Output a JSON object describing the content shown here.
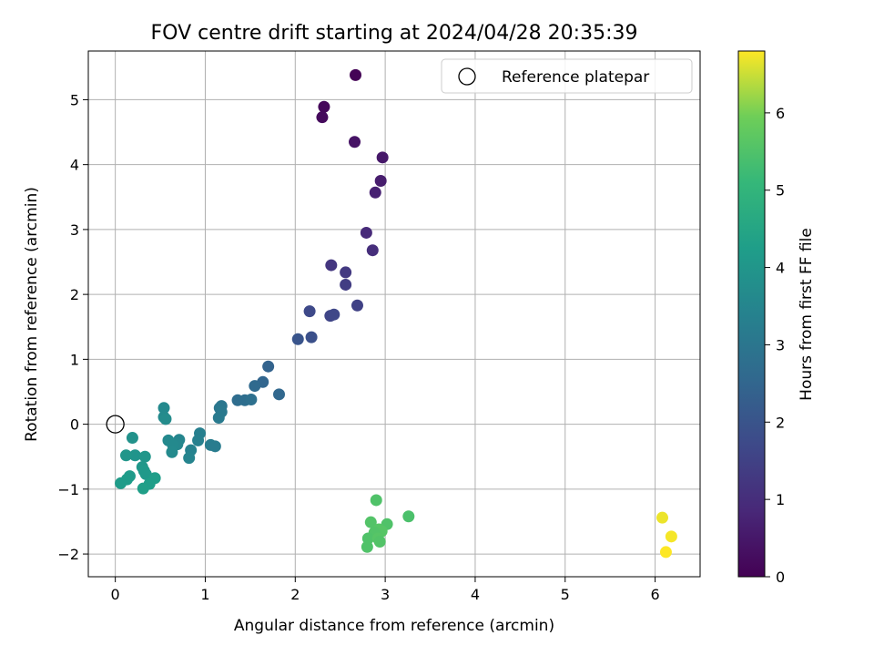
{
  "chart_data": {
    "type": "scatter",
    "title": "FOV centre drift starting at 2024/04/28 20:35:39",
    "xlabel": "Angular distance from reference (arcmin)",
    "ylabel": "Rotation from reference (arcmin)",
    "xlim": [
      -0.3,
      6.5
    ],
    "ylim": [
      -2.35,
      5.75
    ],
    "xticks": [
      0,
      1,
      2,
      3,
      4,
      5,
      6
    ],
    "yticks": [
      -2,
      -1,
      0,
      1,
      2,
      3,
      4,
      5
    ],
    "xtick_labels": [
      "0",
      "1",
      "2",
      "3",
      "4",
      "5",
      "6"
    ],
    "ytick_labels": [
      "−2",
      "−1",
      "0",
      "1",
      "2",
      "3",
      "4",
      "5"
    ],
    "grid": true,
    "legend": {
      "label": "Reference platepar",
      "placement": "top-right"
    },
    "reference_point": {
      "x": 0,
      "y": 0
    },
    "colorbar": {
      "label": "Hours from first FF file",
      "colormap": "viridis",
      "range": [
        0,
        6.8
      ],
      "ticks": [
        0,
        1,
        2,
        3,
        4,
        5,
        6
      ],
      "tick_labels": [
        "0",
        "1",
        "2",
        "3",
        "4",
        "5",
        "6"
      ]
    },
    "points": [
      {
        "x": 2.67,
        "y": 5.38,
        "c": 0.05
      },
      {
        "x": 2.32,
        "y": 4.89,
        "c": 0.15
      },
      {
        "x": 2.3,
        "y": 4.73,
        "c": 0.2
      },
      {
        "x": 2.66,
        "y": 4.35,
        "c": 0.4
      },
      {
        "x": 2.97,
        "y": 4.11,
        "c": 0.5
      },
      {
        "x": 2.95,
        "y": 3.75,
        "c": 0.6
      },
      {
        "x": 2.89,
        "y": 3.57,
        "c": 0.7
      },
      {
        "x": 2.79,
        "y": 2.95,
        "c": 0.9
      },
      {
        "x": 2.86,
        "y": 2.68,
        "c": 1.0
      },
      {
        "x": 2.4,
        "y": 2.45,
        "c": 1.2
      },
      {
        "x": 2.56,
        "y": 2.34,
        "c": 1.3
      },
      {
        "x": 2.56,
        "y": 2.15,
        "c": 1.4
      },
      {
        "x": 2.69,
        "y": 1.83,
        "c": 1.5
      },
      {
        "x": 2.16,
        "y": 1.74,
        "c": 1.7
      },
      {
        "x": 2.39,
        "y": 1.67,
        "c": 1.6
      },
      {
        "x": 2.43,
        "y": 1.69,
        "c": 1.65
      },
      {
        "x": 2.18,
        "y": 1.34,
        "c": 1.9
      },
      {
        "x": 2.03,
        "y": 1.31,
        "c": 2.0
      },
      {
        "x": 1.7,
        "y": 0.89,
        "c": 2.4
      },
      {
        "x": 1.64,
        "y": 0.65,
        "c": 2.5
      },
      {
        "x": 1.55,
        "y": 0.59,
        "c": 2.6
      },
      {
        "x": 1.82,
        "y": 0.46,
        "c": 2.55
      },
      {
        "x": 1.36,
        "y": 0.37,
        "c": 2.7
      },
      {
        "x": 1.44,
        "y": 0.37,
        "c": 2.75
      },
      {
        "x": 1.51,
        "y": 0.38,
        "c": 2.8
      },
      {
        "x": 1.18,
        "y": 0.28,
        "c": 3.0
      },
      {
        "x": 1.16,
        "y": 0.25,
        "c": 3.05
      },
      {
        "x": 1.18,
        "y": 0.19,
        "c": 3.1
      },
      {
        "x": 1.15,
        "y": 0.1,
        "c": 3.15
      },
      {
        "x": 0.54,
        "y": 0.25,
        "c": 3.6
      },
      {
        "x": 0.54,
        "y": 0.11,
        "c": 3.65
      },
      {
        "x": 0.56,
        "y": 0.08,
        "c": 3.7
      },
      {
        "x": 0.94,
        "y": -0.14,
        "c": 3.3
      },
      {
        "x": 0.92,
        "y": -0.25,
        "c": 3.35
      },
      {
        "x": 1.06,
        "y": -0.32,
        "c": 3.25
      },
      {
        "x": 1.11,
        "y": -0.34,
        "c": 3.2
      },
      {
        "x": 0.84,
        "y": -0.4,
        "c": 3.4
      },
      {
        "x": 0.82,
        "y": -0.52,
        "c": 3.45
      },
      {
        "x": 0.71,
        "y": -0.24,
        "c": 3.5
      },
      {
        "x": 0.69,
        "y": -0.31,
        "c": 3.55
      },
      {
        "x": 0.59,
        "y": -0.25,
        "c": 3.6
      },
      {
        "x": 0.64,
        "y": -0.32,
        "c": 3.62
      },
      {
        "x": 0.63,
        "y": -0.43,
        "c": 3.65
      },
      {
        "x": 0.19,
        "y": -0.21,
        "c": 3.9
      },
      {
        "x": 0.22,
        "y": -0.48,
        "c": 3.95
      },
      {
        "x": 0.12,
        "y": -0.48,
        "c": 4.0
      },
      {
        "x": 0.33,
        "y": -0.5,
        "c": 4.0
      },
      {
        "x": 0.3,
        "y": -0.66,
        "c": 4.05
      },
      {
        "x": 0.32,
        "y": -0.72,
        "c": 4.1
      },
      {
        "x": 0.34,
        "y": -0.77,
        "c": 4.1
      },
      {
        "x": 0.16,
        "y": -0.8,
        "c": 4.15
      },
      {
        "x": 0.13,
        "y": -0.85,
        "c": 4.2
      },
      {
        "x": 0.06,
        "y": -0.91,
        "c": 4.2
      },
      {
        "x": 0.44,
        "y": -0.83,
        "c": 4.25
      },
      {
        "x": 0.38,
        "y": -0.92,
        "c": 4.25
      },
      {
        "x": 0.31,
        "y": -0.99,
        "c": 4.3
      },
      {
        "x": 2.9,
        "y": -1.17,
        "c": 5.5
      },
      {
        "x": 3.26,
        "y": -1.42,
        "c": 5.45
      },
      {
        "x": 2.84,
        "y": -1.51,
        "c": 5.55
      },
      {
        "x": 3.02,
        "y": -1.54,
        "c": 5.5
      },
      {
        "x": 2.93,
        "y": -1.62,
        "c": 5.6
      },
      {
        "x": 2.96,
        "y": -1.65,
        "c": 5.6
      },
      {
        "x": 2.88,
        "y": -1.67,
        "c": 5.55
      },
      {
        "x": 2.81,
        "y": -1.76,
        "c": 5.5
      },
      {
        "x": 2.92,
        "y": -1.76,
        "c": 5.6
      },
      {
        "x": 2.94,
        "y": -1.81,
        "c": 5.55
      },
      {
        "x": 2.8,
        "y": -1.89,
        "c": 5.5
      },
      {
        "x": 6.08,
        "y": -1.44,
        "c": 6.7
      },
      {
        "x": 6.18,
        "y": -1.73,
        "c": 6.75
      },
      {
        "x": 6.12,
        "y": -1.97,
        "c": 6.8
      }
    ]
  }
}
